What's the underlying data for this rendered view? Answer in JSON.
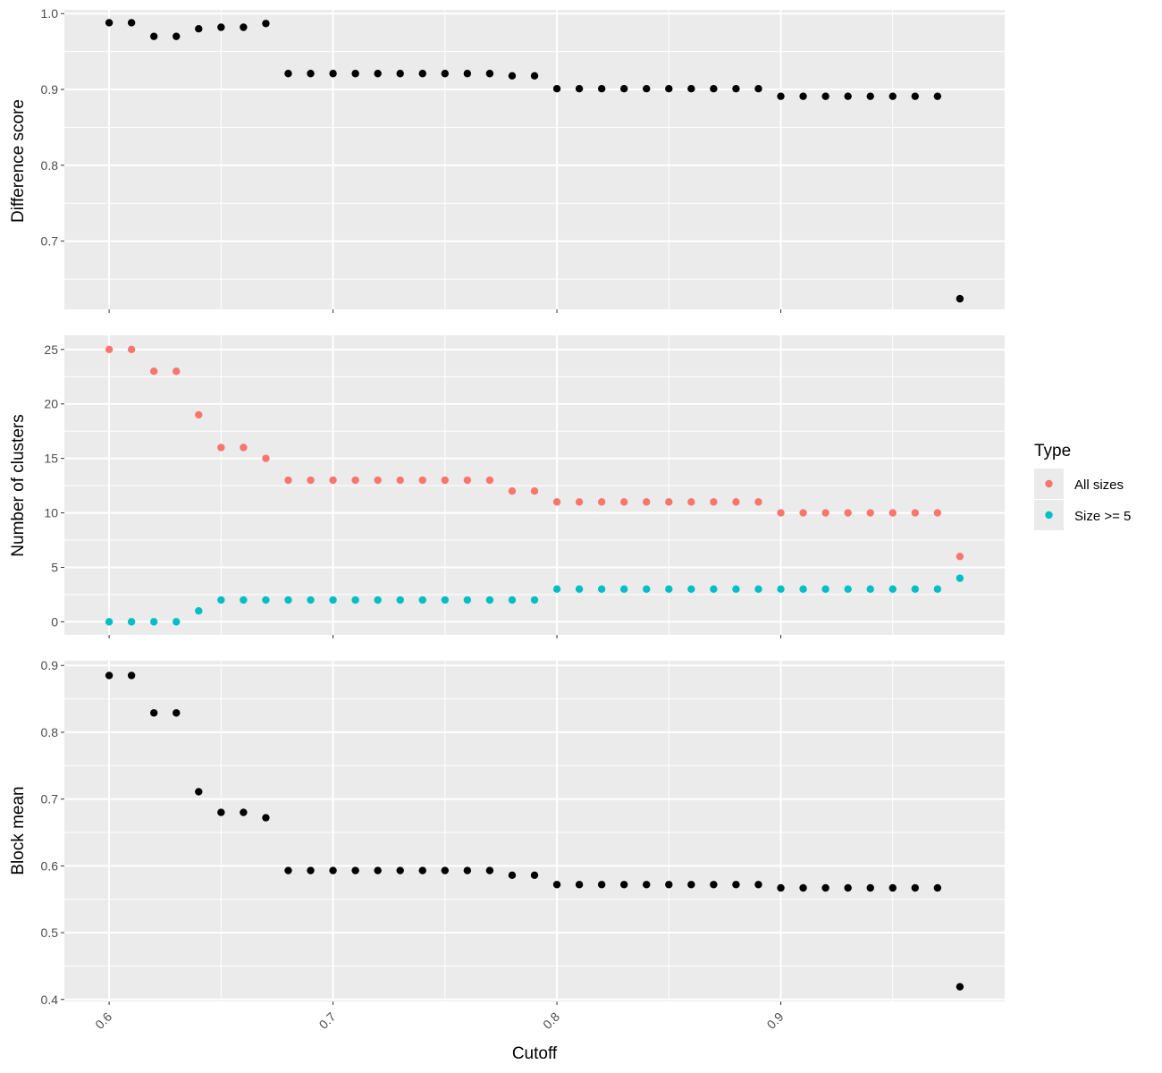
{
  "chart_data": {
    "type": "scatter",
    "x_label": "Cutoff",
    "x_ticks": [
      "0.6",
      "0.7",
      "0.8",
      "0.9"
    ],
    "x": [
      0.6,
      0.61,
      0.62,
      0.63,
      0.64,
      0.65,
      0.66,
      0.67,
      0.68,
      0.69,
      0.7,
      0.71,
      0.72,
      0.73,
      0.74,
      0.75,
      0.76,
      0.77,
      0.78,
      0.79,
      0.8,
      0.81,
      0.82,
      0.83,
      0.84,
      0.85,
      0.86,
      0.87,
      0.88,
      0.89,
      0.9,
      0.91,
      0.92,
      0.93,
      0.94,
      0.95,
      0.96,
      0.97,
      0.98
    ],
    "xlim": [
      0.58,
      1.0
    ],
    "grid": true,
    "legend_position": "right",
    "panels": [
      {
        "ylabel": "Difference score",
        "ylim": [
          0.61,
          1.005
        ],
        "yticks": [
          0.7,
          0.8,
          0.9,
          1.0
        ],
        "ytick_labels": [
          "0.7",
          "0.8",
          "0.9",
          "1.0"
        ],
        "series": [
          {
            "color": "#000000",
            "values": [
              0.988,
              0.988,
              0.97,
              0.97,
              0.98,
              0.982,
              0.982,
              0.987,
              0.921,
              0.921,
              0.921,
              0.921,
              0.921,
              0.921,
              0.921,
              0.921,
              0.921,
              0.921,
              0.918,
              0.918,
              0.901,
              0.901,
              0.901,
              0.901,
              0.901,
              0.901,
              0.901,
              0.901,
              0.901,
              0.901,
              0.891,
              0.891,
              0.891,
              0.891,
              0.891,
              0.891,
              0.891,
              0.891,
              0.624
            ]
          }
        ]
      },
      {
        "ylabel": "Number of clusters",
        "ylim": [
          -1.2,
          26.3
        ],
        "yticks": [
          0,
          5,
          10,
          15,
          20,
          25
        ],
        "ytick_labels": [
          "0",
          "5",
          "10",
          "15",
          "20",
          "25"
        ],
        "series": [
          {
            "name": "All sizes",
            "color": "#F8766D",
            "values": [
              25,
              25,
              23,
              23,
              19,
              16,
              16,
              15,
              13,
              13,
              13,
              13,
              13,
              13,
              13,
              13,
              13,
              13,
              12,
              12,
              11,
              11,
              11,
              11,
              11,
              11,
              11,
              11,
              11,
              11,
              10,
              10,
              10,
              10,
              10,
              10,
              10,
              10,
              6
            ]
          },
          {
            "name": "Size >= 5",
            "color": "#00BFC4",
            "values": [
              0,
              0,
              0,
              0,
              1,
              2,
              2,
              2,
              2,
              2,
              2,
              2,
              2,
              2,
              2,
              2,
              2,
              2,
              2,
              2,
              3,
              3,
              3,
              3,
              3,
              3,
              3,
              3,
              3,
              3,
              3,
              3,
              3,
              3,
              3,
              3,
              3,
              3,
              4
            ]
          }
        ]
      },
      {
        "ylabel": "Block mean",
        "ylim": [
          0.397,
          0.907
        ],
        "yticks": [
          0.4,
          0.5,
          0.6,
          0.7,
          0.8,
          0.9
        ],
        "ytick_labels": [
          "0.4",
          "0.5",
          "0.6",
          "0.7",
          "0.8",
          "0.9"
        ],
        "series": [
          {
            "color": "#000000",
            "values": [
              0.885,
              0.885,
              0.829,
              0.829,
              0.711,
              0.68,
              0.68,
              0.672,
              0.593,
              0.593,
              0.593,
              0.593,
              0.593,
              0.593,
              0.593,
              0.593,
              0.593,
              0.593,
              0.586,
              0.586,
              0.572,
              0.572,
              0.572,
              0.572,
              0.572,
              0.572,
              0.572,
              0.572,
              0.572,
              0.572,
              0.567,
              0.567,
              0.567,
              0.567,
              0.567,
              0.567,
              0.567,
              0.567,
              0.419
            ]
          }
        ]
      }
    ],
    "legend": {
      "title": "Type",
      "items": [
        {
          "label": "All sizes",
          "color": "#F8766D"
        },
        {
          "label": "Size >= 5",
          "color": "#00BFC4"
        }
      ]
    }
  }
}
